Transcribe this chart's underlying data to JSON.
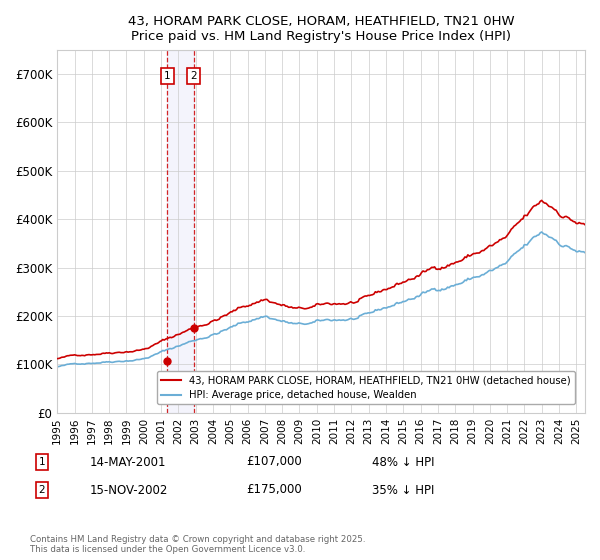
{
  "title_line1": "43, HORAM PARK CLOSE, HORAM, HEATHFIELD, TN21 0HW",
  "title_line2": "Price paid vs. HM Land Registry's House Price Index (HPI)",
  "ylim": [
    0,
    750000
  ],
  "yticks": [
    0,
    100000,
    200000,
    300000,
    400000,
    500000,
    600000,
    700000
  ],
  "ytick_labels": [
    "£0",
    "£100K",
    "£200K",
    "£300K",
    "£400K",
    "£500K",
    "£600K",
    "£700K"
  ],
  "xlim_start": 1995,
  "xlim_end": 2025.5,
  "hpi_color": "#6baed6",
  "price_color": "#cc0000",
  "transaction1_date": 2001.37,
  "transaction1_price": 107000,
  "transaction2_date": 2002.88,
  "transaction2_price": 175000,
  "legend_label_price": "43, HORAM PARK CLOSE, HORAM, HEATHFIELD, TN21 0HW (detached house)",
  "legend_label_hpi": "HPI: Average price, detached house, Wealden",
  "annotation1_date": "14-MAY-2001",
  "annotation1_price": "£107,000",
  "annotation1_info": "48% ↓ HPI",
  "annotation2_date": "15-NOV-2002",
  "annotation2_price": "£175,000",
  "annotation2_info": "35% ↓ HPI",
  "footer": "Contains HM Land Registry data © Crown copyright and database right 2025.\nThis data is licensed under the Open Government Licence v3.0.",
  "background_color": "#ffffff",
  "grid_color": "#cccccc"
}
